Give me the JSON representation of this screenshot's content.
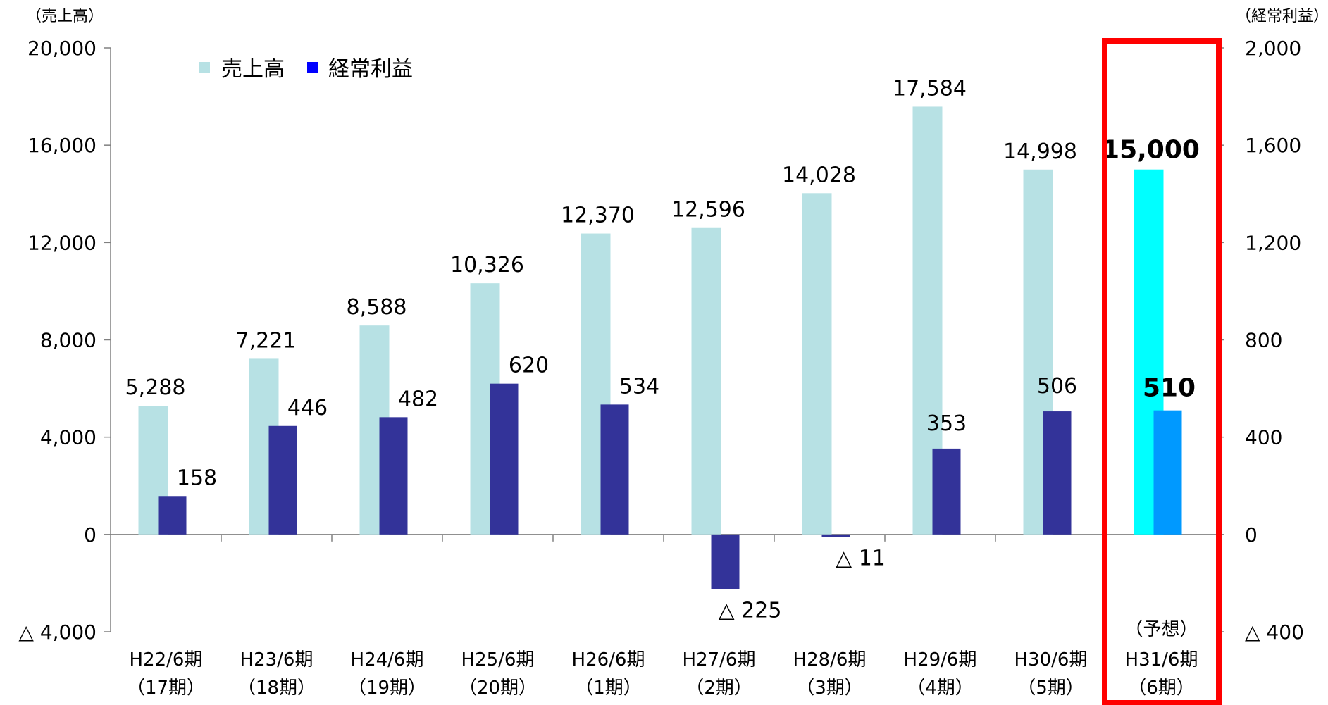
{
  "chart_data": {
    "type": "bar",
    "categories": [
      [
        "H22/6期",
        "（17期）"
      ],
      [
        "H23/6期",
        "（18期）"
      ],
      [
        "H24/6期",
        "（19期）"
      ],
      [
        "H25/6期",
        "（20期）"
      ],
      [
        "H26/6期",
        "（1期）"
      ],
      [
        "H27/6期",
        "（2期）"
      ],
      [
        "H28/6期",
        "（3期）"
      ],
      [
        "H29/6期",
        "（4期）"
      ],
      [
        "H30/6期",
        "（5期）"
      ],
      [
        "H31/6期",
        "（6期）"
      ]
    ],
    "forecast_note": "（予想）",
    "left_axis": {
      "unit_label": "（売上高）",
      "ticks": [
        {
          "value": 20000,
          "label": "20,000"
        },
        {
          "value": 16000,
          "label": "16,000"
        },
        {
          "value": 12000,
          "label": "12,000"
        },
        {
          "value": 8000,
          "label": "8,000"
        },
        {
          "value": 4000,
          "label": "4,000"
        },
        {
          "value": 0,
          "label": "0"
        },
        {
          "value": -4000,
          "label": "△ 4,000"
        }
      ],
      "ylim": [
        -4000,
        20000
      ]
    },
    "right_axis": {
      "unit_label": "（経常利益）",
      "ticks": [
        {
          "value": 2000,
          "label": "2,000"
        },
        {
          "value": 1600,
          "label": "1,600"
        },
        {
          "value": 1200,
          "label": "1,200"
        },
        {
          "value": 800,
          "label": "800"
        },
        {
          "value": 400,
          "label": "400"
        },
        {
          "value": 0,
          "label": "0"
        },
        {
          "value": -400,
          "label": "△ 400"
        }
      ],
      "ylim": [
        -400,
        2000
      ]
    },
    "legend": {
      "placement": "top-left"
    },
    "series": [
      {
        "name": "売上高",
        "axis": "left",
        "color": "#b7e1e4",
        "highlight_color": "#00ffff",
        "values": [
          5288,
          7221,
          8588,
          10326,
          12370,
          12596,
          14028,
          17584,
          14998,
          15000
        ],
        "labels": [
          "5,288",
          "7,221",
          "8,588",
          "10,326",
          "12,370",
          "12,596",
          "14,028",
          "17,584",
          "14,998",
          "15,000"
        ]
      },
      {
        "name": "経常利益",
        "axis": "right",
        "color": "#333399",
        "highlight_color": "#0099ff",
        "values": [
          158,
          446,
          482,
          620,
          534,
          -225,
          -11,
          353,
          506,
          510
        ],
        "labels": [
          "158",
          "446",
          "482",
          "620",
          "534",
          "△ 225",
          "△ 11",
          "353",
          "506",
          "510"
        ]
      }
    ],
    "highlight_index": 9,
    "highlight_box_color": "#ff0000"
  }
}
